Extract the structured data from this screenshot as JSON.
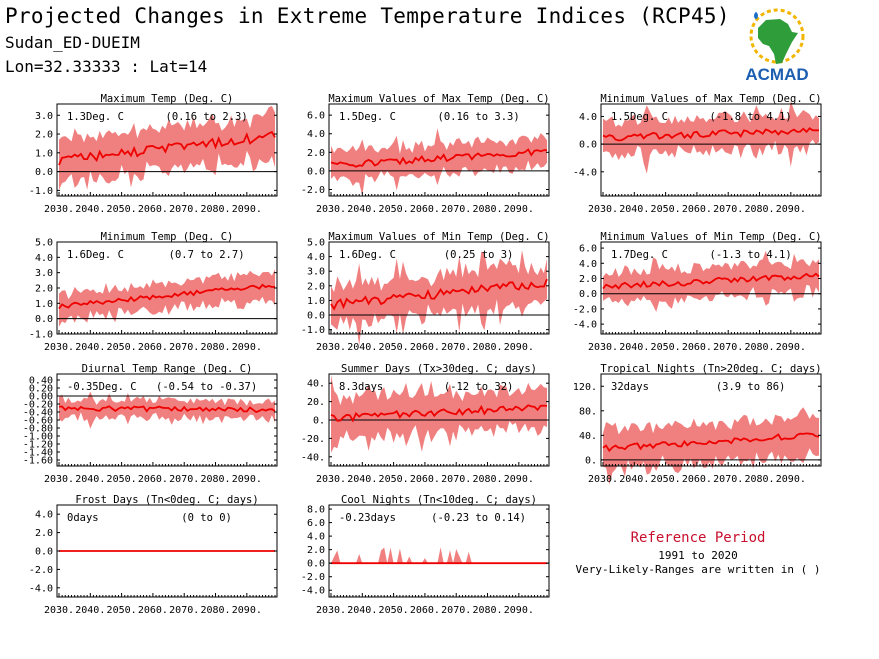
{
  "header": {
    "title": "Projected Changes in Extreme Temperature Indices (RCP45)",
    "subtitle_location": "Sudan_ED-DUEIM",
    "subtitle_coords": "Lon=32.33333 : Lat=14"
  },
  "logo": {
    "text": "ACMAD",
    "icon": "africa-map-logo"
  },
  "reference": {
    "title": "Reference Period",
    "years": "1991 to 2020",
    "note": "Very-Likely-Ranges are written in ( )"
  },
  "colors": {
    "band": "#f08080",
    "median": "#ee0000",
    "zero_line": "#000000",
    "ref_title": "#c8102e"
  },
  "chart_data": [
    {
      "type": "area",
      "title": "Maximum Temp (Deg. C)",
      "mean_label": "1.3Deg. C",
      "range_label": "(0.16 to 2.3)",
      "x_ticks": [
        "2030.",
        "2040.",
        "2050.",
        "2060.",
        "2070.",
        "2080.",
        "2090."
      ],
      "y_ticks": [
        "-1.0",
        "0.0",
        "1.0",
        "2.0",
        "3.0"
      ],
      "ylim": [
        -1.3,
        3.6
      ],
      "median_start": 0.6,
      "median_end": 1.9,
      "half_width": 1.1,
      "median_noise": 0.25,
      "width_noise": 0.3,
      "spikes": 0.2
    },
    {
      "type": "area",
      "title": "Maximum Values of Max Temp (Deg. C)",
      "mean_label": "1.5Deg. C",
      "range_label": "(0.16 to 3.3)",
      "x_ticks": [
        "2030.",
        "2040.",
        "2050.",
        "2060.",
        "2070.",
        "2080.",
        "2090."
      ],
      "y_ticks": [
        "-2.0",
        "0.0",
        "2.0",
        "4.0",
        "6.0"
      ],
      "ylim": [
        -2.7,
        7.2
      ],
      "median_start": 0.6,
      "median_end": 2.1,
      "half_width": 1.5,
      "median_noise": 0.35,
      "width_noise": 0.5,
      "spikes": 1
    },
    {
      "type": "area",
      "title": "Minimum Values of Max Temp (Deg. C)",
      "mean_label": "1.5Deg. C",
      "range_label": "(-1.8 to 4.1)",
      "x_ticks": [
        "2030.",
        "2040.",
        "2050.",
        "2060.",
        "2070.",
        "2080.",
        "2090."
      ],
      "y_ticks": [
        "-4.0",
        "0.0",
        "4.0"
      ],
      "ylim": [
        -7.5,
        5.8
      ],
      "median_start": 0.9,
      "median_end": 2.0,
      "half_width": 2.2,
      "median_noise": 0.5,
      "width_noise": 0.7,
      "spikes": 1
    },
    {
      "type": "area",
      "title": "Minimum Temp (Deg. C)",
      "mean_label": "1.6Deg. C",
      "range_label": "(0.7 to 2.7)",
      "x_ticks": [
        "2030.",
        "2040.",
        "2050.",
        "2060.",
        "2070.",
        "2080.",
        "2090."
      ],
      "y_ticks": [
        "-1.0",
        "0.0",
        "1.0",
        "2.0",
        "3.0",
        "4.0",
        "5.0"
      ],
      "ylim": [
        -1.0,
        5.0
      ],
      "median_start": 0.8,
      "median_end": 2.2,
      "half_width": 0.8,
      "median_noise": 0.15,
      "width_noise": 0.3,
      "spikes": 0.2
    },
    {
      "type": "area",
      "title": "Maximum Values of Min Temp (Deg. C)",
      "mean_label": "1.6Deg. C",
      "range_label": "(0.25 to 3)",
      "x_ticks": [
        "2030.",
        "2040.",
        "2050.",
        "2060.",
        "2070.",
        "2080.",
        "2090."
      ],
      "y_ticks": [
        "-1.0",
        "0.0",
        "1.0",
        "2.0",
        "3.0",
        "4.0",
        "5.0"
      ],
      "ylim": [
        -1.3,
        5.0
      ],
      "median_start": 0.7,
      "median_end": 2.2,
      "half_width": 1.2,
      "median_noise": 0.3,
      "width_noise": 0.4,
      "spikes": 1
    },
    {
      "type": "area",
      "title": "Minimum Values of Min Temp (Deg. C)",
      "mean_label": "1.7Deg. C",
      "range_label": "(-1.3 to 4.1)",
      "x_ticks": [
        "2030.",
        "2040.",
        "2050.",
        "2060.",
        "2070.",
        "2080.",
        "2090."
      ],
      "y_ticks": [
        "-4.0",
        "-2.0",
        "0.0",
        "2.0",
        "4.0",
        "6.0"
      ],
      "ylim": [
        -5.3,
        6.8
      ],
      "median_start": 0.9,
      "median_end": 2.4,
      "half_width": 1.9,
      "median_noise": 0.4,
      "width_noise": 0.6,
      "spikes": 1
    },
    {
      "type": "area",
      "title": "Diurnal Temp Range (Deg. C)",
      "mean_label": "-0.35Deg. C",
      "range_label": "(-0.54 to -0.37)",
      "x_ticks": [
        "2030.",
        "2040.",
        "2050.",
        "2060.",
        "2070.",
        "2080.",
        "2090."
      ],
      "y_ticks": [
        "-1.60",
        "-1.40",
        "-1.20",
        "-1.00",
        "-0.80",
        "-0.60",
        "-0.40",
        "-0.20",
        "0.00",
        "0.20",
        "0.40"
      ],
      "ylim": [
        -1.75,
        0.55
      ],
      "median_start": -0.3,
      "median_end": -0.35,
      "half_width": 0.2,
      "median_noise": 0.06,
      "width_noise": 0.08,
      "spikes": 1
    },
    {
      "type": "area",
      "title": "Summer Days (Tx>30deg. C; days)",
      "mean_label": "8.3days",
      "range_label": "(-12 to 32)",
      "x_ticks": [
        "2030.",
        "2040.",
        "2050.",
        "2060.",
        "2070.",
        "2080.",
        "2090."
      ],
      "y_ticks": [
        "-40.",
        "-20.",
        "0.",
        "20.",
        "40."
      ],
      "ylim": [
        -50,
        50
      ],
      "median_start": 2,
      "median_end": 14,
      "half_width": 20,
      "median_noise": 4,
      "width_noise": 6,
      "spikes": 1
    },
    {
      "type": "area",
      "title": "Tropical Nights (Tn>20deg. C; days)",
      "mean_label": "32days",
      "range_label": "(3.9 to 86)",
      "x_ticks": [
        "2030.",
        "2040.",
        "2050.",
        "2060.",
        "2070.",
        "2080.",
        "2090."
      ],
      "y_ticks": [
        "0.",
        "40.",
        "80.",
        "120."
      ],
      "ylim": [
        -10,
        140
      ],
      "median_start": 18,
      "median_end": 42,
      "half_width": 30,
      "median_noise": 5,
      "width_noise": 9,
      "spikes": 0.4
    },
    {
      "type": "area",
      "title": "Frost Days (Tn<0deg. C; days)",
      "mean_label": "0days",
      "range_label": "(0 to 0)",
      "x_ticks": [
        "2030.",
        "2040.",
        "2050.",
        "2060.",
        "2070.",
        "2080.",
        "2090."
      ],
      "y_ticks": [
        "-4.0",
        "-2.0",
        "0.0",
        "2.0",
        "4.0"
      ],
      "ylim": [
        -5,
        5
      ],
      "median_start": 0,
      "median_end": 0,
      "half_width": 0,
      "median_noise": 0,
      "width_noise": 0,
      "spikes": 0
    },
    {
      "type": "area",
      "title": "Cool Nights (Tn<10deg. C; days)",
      "mean_label": "-0.23days",
      "range_label": "(-0.23 to 0.14)",
      "x_ticks": [
        "2030.",
        "2040.",
        "2050.",
        "2060.",
        "2070.",
        "2080.",
        "2090."
      ],
      "y_ticks": [
        "-4.0",
        "-2.0",
        "0.0",
        "2.0",
        "4.0",
        "6.0",
        "8.0"
      ],
      "ylim": [
        -5,
        8.6
      ],
      "median_start": 0,
      "median_end": 0,
      "half_width": 0,
      "median_noise": 0,
      "width_noise": 0,
      "spikes": 0,
      "occasional_peaks": true
    }
  ]
}
